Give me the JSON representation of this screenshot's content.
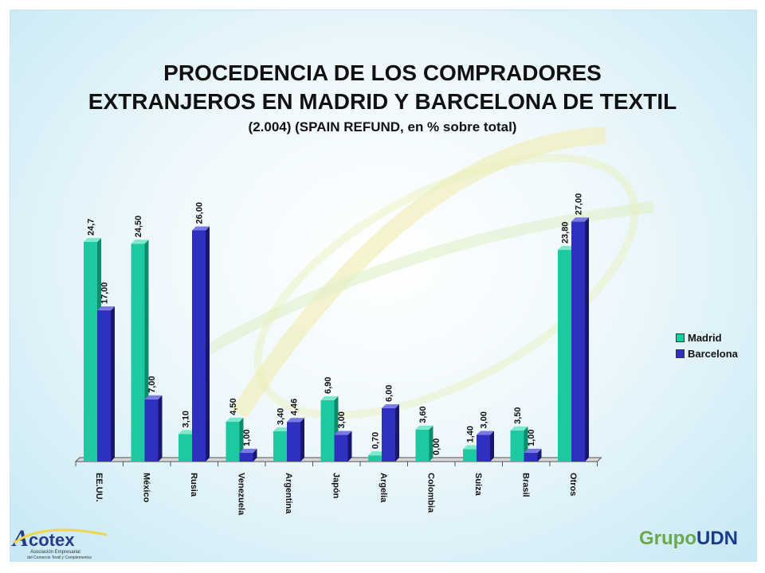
{
  "title_line1": "PROCEDENCIA DE LOS COMPRADORES",
  "title_line2": "EXTRANJEROS EN MADRID Y BARCELONA DE TEXTIL",
  "subtitle": "(2.004) (SPAIN REFUND, en % sobre total)",
  "colors": {
    "madrid": "#1ec8a0",
    "barcelona": "#2f2fc0"
  },
  "chart_data": {
    "type": "bar",
    "title": "PROCEDENCIA DE LOS COMPRADORES EXTRANJEROS EN MADRID Y BARCELONA DE TEXTIL",
    "subtitle": "(2.004) (SPAIN REFUND, en % sobre total)",
    "categories": [
      "EE.UU.",
      "México",
      "Rusia",
      "Venezuela",
      "Argentina",
      "Japón",
      "Argelia",
      "Colombia",
      "Suiza",
      "Brasil",
      "Otros"
    ],
    "series": [
      {
        "name": "Madrid",
        "values": [
          24.7,
          24.5,
          3.1,
          4.5,
          3.4,
          6.9,
          0.7,
          3.6,
          1.4,
          3.5,
          23.8
        ],
        "labels": [
          "24,7",
          "24,50",
          "3,10",
          "4,50",
          "3,40",
          "6,90",
          "0,70",
          "3,60",
          "1,40",
          "3,50",
          "23,80"
        ]
      },
      {
        "name": "Barcelona",
        "values": [
          17.0,
          7.0,
          26.0,
          1.0,
          4.46,
          3.0,
          6.0,
          0.0,
          3.0,
          1.0,
          27.0
        ],
        "labels": [
          "17,00",
          "7,00",
          "26,00",
          "1,00",
          "4,46",
          "3,00",
          "6,00",
          "0,00",
          "3,00",
          "1,00",
          "27,00"
        ]
      }
    ],
    "ylim": [
      0,
      28
    ],
    "grid": false,
    "legend": "right"
  },
  "legend": {
    "madrid": "Madrid",
    "barcelona": "Barcelona"
  },
  "logos": {
    "acotex_name": "Acotex",
    "acotex_tagline1": "Asociación Empresarial",
    "acotex_tagline2": "del Comercio Textil y Complementos",
    "udn": "GrupoUDN"
  }
}
